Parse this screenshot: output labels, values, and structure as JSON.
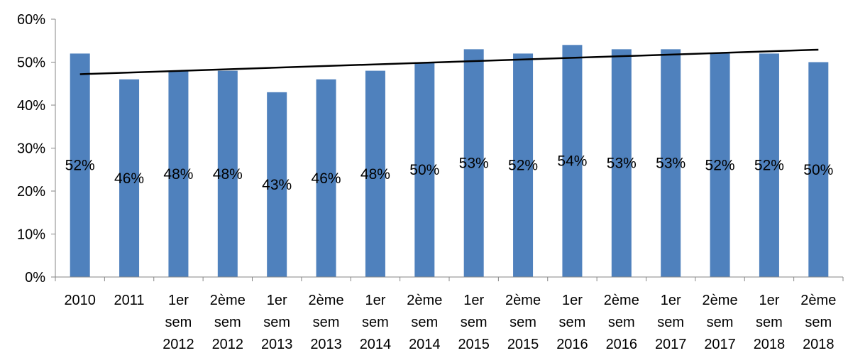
{
  "chart_data": {
    "type": "bar",
    "title": "",
    "xlabel": "",
    "ylabel": "",
    "ylim": [
      0,
      60
    ],
    "y_ticks": [
      "0%",
      "10%",
      "20%",
      "30%",
      "40%",
      "50%",
      "60%"
    ],
    "grid": false,
    "legend": "none",
    "bar_color": "#4F81BD",
    "trendline": {
      "type": "linear",
      "color": "#000000",
      "start": 47.2,
      "end": 52.9
    },
    "categories": [
      [
        "2010"
      ],
      [
        "2011"
      ],
      [
        "1er",
        "sem",
        "2012"
      ],
      [
        "2ème",
        "sem",
        "2012"
      ],
      [
        "1er",
        "sem",
        "2013"
      ],
      [
        "2ème",
        "sem",
        "2013"
      ],
      [
        "1er",
        "sem",
        "2014"
      ],
      [
        "2ème",
        "sem",
        "2014"
      ],
      [
        "1er",
        "sem",
        "2015"
      ],
      [
        "2ème",
        "sem",
        "2015"
      ],
      [
        "1er",
        "sem",
        "2016"
      ],
      [
        "2ème",
        "sem",
        "2016"
      ],
      [
        "1er",
        "sem",
        "2017"
      ],
      [
        "2ème",
        "sem",
        "2017"
      ],
      [
        "1er",
        "sem",
        "2018"
      ],
      [
        "2ème",
        "sem",
        "2018"
      ]
    ],
    "values": [
      52,
      46,
      48,
      48,
      43,
      46,
      48,
      50,
      53,
      52,
      54,
      53,
      53,
      52,
      52,
      50
    ],
    "data_labels": [
      "52%",
      "46%",
      "48%",
      "48%",
      "43%",
      "46%",
      "48%",
      "50%",
      "53%",
      "52%",
      "54%",
      "53%",
      "53%",
      "52%",
      "52%",
      "50%"
    ]
  }
}
